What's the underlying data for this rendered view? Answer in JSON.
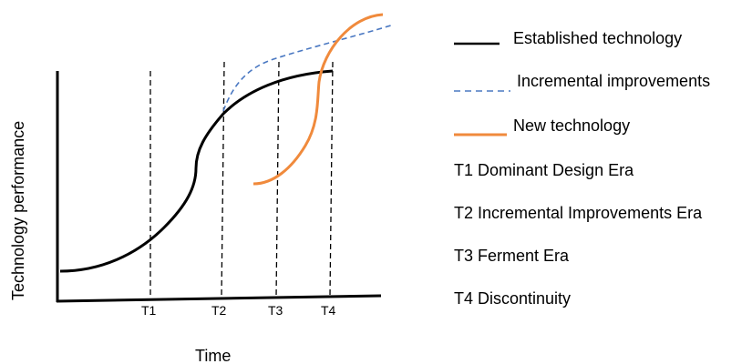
{
  "axes": {
    "y_label": "Technology performance",
    "x_label": "Time"
  },
  "ticks": [
    {
      "label": "T1"
    },
    {
      "label": "T2"
    },
    {
      "label": "T3"
    },
    {
      "label": "T4"
    }
  ],
  "legend": [
    {
      "label": "Established technology",
      "color": "#000000",
      "style": "solid"
    },
    {
      "label": "Incremental improvements",
      "color": "#4a78c2",
      "style": "dashed"
    },
    {
      "label": "New technology",
      "color": "#f08a3c",
      "style": "solid"
    }
  ],
  "eras": [
    {
      "label": "T1 Dominant Design Era"
    },
    {
      "label": "T2 Incremental Improvements Era"
    },
    {
      "label": "T3 Ferment Era"
    },
    {
      "label": "T4 Discontinuity"
    }
  ]
}
